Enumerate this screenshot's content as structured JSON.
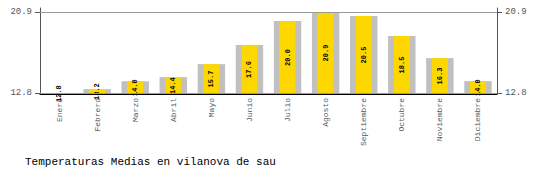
{
  "chart_data": {
    "type": "bar",
    "title": "Temperaturas Medias en vilanova de sau",
    "categories": [
      "Enero",
      "Febrero",
      "Marzo",
      "Abril",
      "Mayo",
      "Junio",
      "Julio",
      "Agosto",
      "Septiembre",
      "Octubre",
      "Noviembre",
      "Diciembre"
    ],
    "values": [
      12.8,
      13.2,
      14.0,
      14.4,
      15.7,
      17.6,
      20.0,
      20.9,
      20.5,
      18.5,
      16.3,
      14.0
    ],
    "value_labels": [
      "12.8",
      "13.2",
      "14.0",
      "14.4",
      "15.7",
      "17.6",
      "20.0",
      "20.9",
      "20.5",
      "18.5",
      "16.3",
      "14.0"
    ],
    "color": "#FFD700",
    "ylim": [
      12.719,
      21.305
    ],
    "yticks": [
      12.8,
      20.9
    ],
    "grid": true,
    "data_labels": true
  }
}
